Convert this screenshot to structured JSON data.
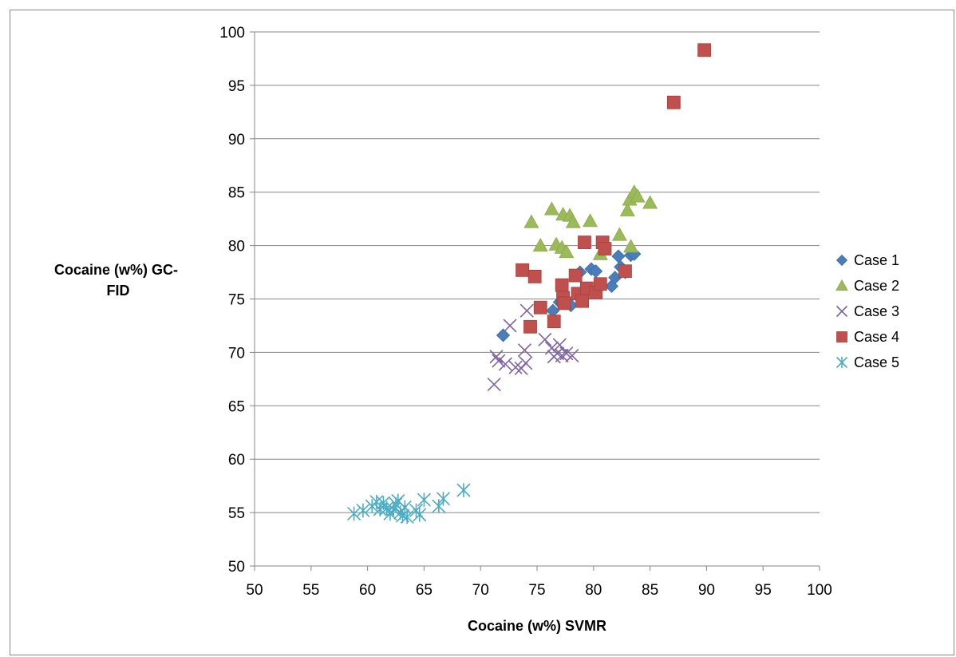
{
  "chart_data": {
    "type": "scatter",
    "title": "",
    "xlabel": "Cocaine (w%) SVMR",
    "ylabel": "Cocaine (w%) GC-FID",
    "xlim": [
      50,
      100
    ],
    "ylim": [
      50,
      100
    ],
    "x_ticks": [
      "50",
      "55",
      "60",
      "65",
      "70",
      "75",
      "80",
      "85",
      "90",
      "95",
      "100"
    ],
    "y_ticks": [
      "50",
      "55",
      "60",
      "65",
      "70",
      "75",
      "80",
      "85",
      "90",
      "95",
      "100"
    ],
    "grid": "horizontal",
    "legend_position": "right",
    "series": [
      {
        "name": "Case 1",
        "marker": "diamond",
        "color": "#4a7ebb",
        "points": [
          [
            72.0,
            71.6
          ],
          [
            76.4,
            73.9
          ],
          [
            77.0,
            74.7
          ],
          [
            78.0,
            74.4
          ],
          [
            78.8,
            77.5
          ],
          [
            79.8,
            77.8
          ],
          [
            80.2,
            77.6
          ],
          [
            81.6,
            76.2
          ],
          [
            81.9,
            77.0
          ],
          [
            82.2,
            79.0
          ],
          [
            82.4,
            78.0
          ],
          [
            82.8,
            77.5
          ],
          [
            83.3,
            79.1
          ],
          [
            83.6,
            79.2
          ]
        ]
      },
      {
        "name": "Case 2",
        "marker": "triangle",
        "color": "#9bbb59",
        "points": [
          [
            74.5,
            82.2
          ],
          [
            75.3,
            80.0
          ],
          [
            76.3,
            83.4
          ],
          [
            76.7,
            80.1
          ],
          [
            77.2,
            79.8
          ],
          [
            77.3,
            82.9
          ],
          [
            77.6,
            79.4
          ],
          [
            77.9,
            82.8
          ],
          [
            78.2,
            82.2
          ],
          [
            79.7,
            82.3
          ],
          [
            80.6,
            79.2
          ],
          [
            82.3,
            81.0
          ],
          [
            83.0,
            83.3
          ],
          [
            83.2,
            84.3
          ],
          [
            83.3,
            79.9
          ],
          [
            83.6,
            85.0
          ],
          [
            83.9,
            84.6
          ],
          [
            85.0,
            84.0
          ]
        ]
      },
      {
        "name": "Case 3",
        "marker": "x",
        "color": "#8064a2",
        "points": [
          [
            71.2,
            67.0
          ],
          [
            71.4,
            69.6
          ],
          [
            71.6,
            69.2
          ],
          [
            72.2,
            68.9
          ],
          [
            72.6,
            72.5
          ],
          [
            73.1,
            68.6
          ],
          [
            73.6,
            68.5
          ],
          [
            73.9,
            70.2
          ],
          [
            74.0,
            69.0
          ],
          [
            74.1,
            73.9
          ],
          [
            75.7,
            71.2
          ],
          [
            76.3,
            70.4
          ],
          [
            76.5,
            69.6
          ],
          [
            76.8,
            69.9
          ],
          [
            77.0,
            70.7
          ],
          [
            77.2,
            69.7
          ],
          [
            77.6,
            69.9
          ],
          [
            78.1,
            69.7
          ]
        ]
      },
      {
        "name": "Case 4",
        "marker": "square",
        "color": "#c0504d",
        "points": [
          [
            73.7,
            77.7
          ],
          [
            74.4,
            72.4
          ],
          [
            74.8,
            77.1
          ],
          [
            75.3,
            74.2
          ],
          [
            76.5,
            72.9
          ],
          [
            77.2,
            76.3
          ],
          [
            77.3,
            75.1
          ],
          [
            77.4,
            74.6
          ],
          [
            78.4,
            77.2
          ],
          [
            78.6,
            75.5
          ],
          [
            79.0,
            74.8
          ],
          [
            79.2,
            80.3
          ],
          [
            79.4,
            76.0
          ],
          [
            80.2,
            75.6
          ],
          [
            80.6,
            76.4
          ],
          [
            80.8,
            80.3
          ],
          [
            81.0,
            79.7
          ],
          [
            82.8,
            77.6
          ],
          [
            87.1,
            93.4
          ],
          [
            89.8,
            98.3
          ]
        ]
      },
      {
        "name": "Case 5",
        "marker": "asterisk",
        "color": "#4bacc6",
        "points": [
          [
            58.8,
            54.9
          ],
          [
            59.6,
            55.2
          ],
          [
            60.4,
            55.6
          ],
          [
            60.8,
            56.0
          ],
          [
            61.1,
            55.3
          ],
          [
            61.4,
            55.9
          ],
          [
            61.7,
            55.4
          ],
          [
            62.0,
            54.9
          ],
          [
            62.3,
            55.3
          ],
          [
            62.5,
            55.8
          ],
          [
            62.7,
            56.1
          ],
          [
            62.9,
            55.0
          ],
          [
            63.1,
            54.7
          ],
          [
            63.3,
            55.5
          ],
          [
            63.5,
            54.6
          ],
          [
            64.3,
            55.2
          ],
          [
            64.6,
            54.8
          ],
          [
            65.0,
            56.2
          ],
          [
            66.3,
            55.6
          ],
          [
            66.7,
            56.3
          ],
          [
            68.5,
            57.1
          ]
        ]
      }
    ]
  }
}
